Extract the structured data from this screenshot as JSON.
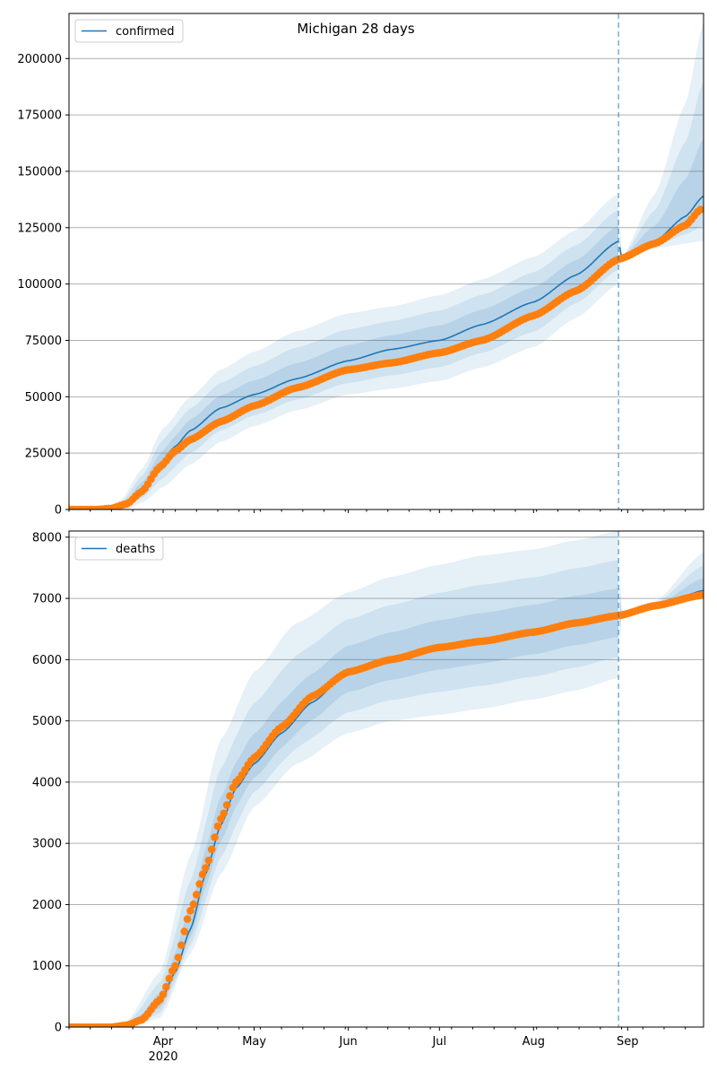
{
  "figure_title": "Michigan 28 days",
  "colors": {
    "model": "#1f77b4",
    "observed": "#ff7f0e",
    "band": "#1f77b4",
    "grid": "#b0b0b0",
    "vline": "#1f77b4"
  },
  "chart_data": [
    {
      "type": "line",
      "series": [
        {
          "name": "confirmed",
          "role": "model-median"
        },
        {
          "role": "observed-markers"
        }
      ],
      "x_ticks_major": [
        "Apr",
        "May",
        "Jun",
        "Jul",
        "Aug",
        "Sep"
      ],
      "x_tick_year": "2020",
      "ylim": [
        0,
        220000
      ],
      "yticks": [
        0,
        25000,
        50000,
        75000,
        100000,
        125000,
        150000,
        175000,
        200000
      ],
      "grid": "y",
      "legend": "top-left",
      "forecast_start": "2020-08-29",
      "model_knots": [
        [
          "2020-03-01",
          0
        ],
        [
          "2020-03-10",
          0
        ],
        [
          "2020-03-15",
          300
        ],
        [
          "2020-03-20",
          2500
        ],
        [
          "2020-03-25",
          9000
        ],
        [
          "2020-03-31",
          20000
        ],
        [
          "2020-04-05",
          28000
        ],
        [
          "2020-04-10",
          35000
        ],
        [
          "2020-04-20",
          45000
        ],
        [
          "2020-05-01",
          51000
        ],
        [
          "2020-05-15",
          58000
        ],
        [
          "2020-06-01",
          66000
        ],
        [
          "2020-06-15",
          71000
        ],
        [
          "2020-07-01",
          75000
        ],
        [
          "2020-07-15",
          82000
        ],
        [
          "2020-08-01",
          92000
        ],
        [
          "2020-08-15",
          104000
        ],
        [
          "2020-08-29",
          119000
        ],
        [
          "2020-08-30",
          112000
        ],
        [
          "2020-09-10",
          119000
        ],
        [
          "2020-09-20",
          130000
        ],
        [
          "2020-09-26",
          139000
        ]
      ],
      "observed_knots": [
        [
          "2020-03-01",
          0
        ],
        [
          "2020-03-10",
          0
        ],
        [
          "2020-03-15",
          500
        ],
        [
          "2020-03-20",
          2500
        ],
        [
          "2020-03-25",
          8000
        ],
        [
          "2020-03-31",
          19000
        ],
        [
          "2020-04-05",
          26000
        ],
        [
          "2020-04-10",
          31000
        ],
        [
          "2020-04-20",
          39000
        ],
        [
          "2020-05-01",
          46000
        ],
        [
          "2020-05-15",
          54000
        ],
        [
          "2020-06-01",
          62000
        ],
        [
          "2020-06-15",
          65000
        ],
        [
          "2020-07-01",
          69500
        ],
        [
          "2020-07-15",
          75000
        ],
        [
          "2020-08-01",
          86000
        ],
        [
          "2020-08-15",
          97000
        ],
        [
          "2020-08-29",
          111000
        ],
        [
          "2020-09-10",
          118000
        ],
        [
          "2020-09-20",
          126000
        ],
        [
          "2020-09-25",
          133000
        ]
      ],
      "band_knots_upper": [
        [
          "2020-03-01",
          0
        ],
        [
          "2020-03-12",
          0
        ],
        [
          "2020-03-18",
          4000
        ],
        [
          "2020-03-25",
          18000
        ],
        [
          "2020-04-01",
          36000
        ],
        [
          "2020-04-10",
          50000
        ],
        [
          "2020-04-20",
          62000
        ],
        [
          "2020-05-01",
          70000
        ],
        [
          "2020-05-15",
          79000
        ],
        [
          "2020-06-01",
          87000
        ],
        [
          "2020-06-15",
          90000
        ],
        [
          "2020-07-01",
          95000
        ],
        [
          "2020-07-15",
          102000
        ],
        [
          "2020-08-01",
          112000
        ],
        [
          "2020-08-15",
          124000
        ],
        [
          "2020-08-29",
          140000
        ],
        [
          "2020-08-30",
          112000
        ],
        [
          "2020-09-10",
          140000
        ],
        [
          "2020-09-20",
          180000
        ],
        [
          "2020-09-26",
          216000
        ]
      ],
      "band_knots_lower": [
        [
          "2020-03-01",
          0
        ],
        [
          "2020-03-20",
          0
        ],
        [
          "2020-03-25",
          3000
        ],
        [
          "2020-04-01",
          10000
        ],
        [
          "2020-04-10",
          20000
        ],
        [
          "2020-04-20",
          30000
        ],
        [
          "2020-05-01",
          37000
        ],
        [
          "2020-05-15",
          44000
        ],
        [
          "2020-06-01",
          51000
        ],
        [
          "2020-06-15",
          53500
        ],
        [
          "2020-07-01",
          57000
        ],
        [
          "2020-07-15",
          63000
        ],
        [
          "2020-08-01",
          72000
        ],
        [
          "2020-08-15",
          85000
        ],
        [
          "2020-08-29",
          100000
        ],
        [
          "2020-08-30",
          112000
        ],
        [
          "2020-09-10",
          116000
        ],
        [
          "2020-09-26",
          119000
        ]
      ]
    },
    {
      "type": "line",
      "series": [
        {
          "name": "deaths",
          "role": "model-median"
        },
        {
          "role": "observed-markers"
        }
      ],
      "x_ticks_major": [
        "Apr",
        "May",
        "Jun",
        "Jul",
        "Aug",
        "Sep"
      ],
      "x_tick_year": "2020",
      "ylim": [
        0,
        8100
      ],
      "yticks": [
        0,
        1000,
        2000,
        3000,
        4000,
        5000,
        6000,
        7000,
        8000
      ],
      "grid": "y",
      "legend": "top-left",
      "forecast_start": "2020-08-29",
      "model_knots": [
        [
          "2020-03-01",
          0
        ],
        [
          "2020-03-15",
          0
        ],
        [
          "2020-03-20",
          20
        ],
        [
          "2020-03-25",
          100
        ],
        [
          "2020-03-31",
          400
        ],
        [
          "2020-04-05",
          900
        ],
        [
          "2020-04-10",
          1600
        ],
        [
          "2020-04-15",
          2500
        ],
        [
          "2020-04-20",
          3300
        ],
        [
          "2020-04-25",
          3900
        ],
        [
          "2020-05-01",
          4300
        ],
        [
          "2020-05-10",
          4800
        ],
        [
          "2020-05-20",
          5300
        ],
        [
          "2020-06-01",
          5800
        ],
        [
          "2020-06-15",
          6000
        ],
        [
          "2020-07-01",
          6200
        ],
        [
          "2020-07-15",
          6300
        ],
        [
          "2020-08-01",
          6450
        ],
        [
          "2020-08-15",
          6600
        ],
        [
          "2020-08-29",
          6700
        ],
        [
          "2020-09-10",
          6850
        ],
        [
          "2020-09-26",
          7130
        ]
      ],
      "observed_knots": [
        [
          "2020-03-01",
          0
        ],
        [
          "2020-03-15",
          0
        ],
        [
          "2020-03-20",
          30
        ],
        [
          "2020-03-25",
          120
        ],
        [
          "2020-03-31",
          450
        ],
        [
          "2020-04-05",
          1000
        ],
        [
          "2020-04-10",
          1900
        ],
        [
          "2020-04-15",
          2600
        ],
        [
          "2020-04-20",
          3400
        ],
        [
          "2020-04-25",
          4000
        ],
        [
          "2020-05-01",
          4400
        ],
        [
          "2020-05-10",
          4900
        ],
        [
          "2020-05-20",
          5400
        ],
        [
          "2020-06-01",
          5800
        ],
        [
          "2020-06-15",
          6000
        ],
        [
          "2020-07-01",
          6200
        ],
        [
          "2020-07-15",
          6300
        ],
        [
          "2020-08-01",
          6450
        ],
        [
          "2020-08-15",
          6600
        ],
        [
          "2020-08-29",
          6720
        ],
        [
          "2020-09-10",
          6880
        ],
        [
          "2020-09-25",
          7050
        ]
      ],
      "band_knots_upper": [
        [
          "2020-03-01",
          0
        ],
        [
          "2020-03-12",
          0
        ],
        [
          "2020-03-20",
          100
        ],
        [
          "2020-03-31",
          900
        ],
        [
          "2020-04-10",
          2800
        ],
        [
          "2020-04-20",
          4700
        ],
        [
          "2020-05-01",
          5800
        ],
        [
          "2020-05-15",
          6600
        ],
        [
          "2020-06-01",
          7100
        ],
        [
          "2020-06-15",
          7350
        ],
        [
          "2020-07-01",
          7550
        ],
        [
          "2020-07-15",
          7700
        ],
        [
          "2020-08-01",
          7800
        ],
        [
          "2020-08-15",
          7950
        ],
        [
          "2020-08-29",
          8100
        ],
        [
          "2020-08-30",
          6800
        ],
        [
          "2020-09-10",
          6950
        ],
        [
          "2020-09-26",
          7750
        ]
      ],
      "band_knots_lower": [
        [
          "2020-03-01",
          0
        ],
        [
          "2020-03-22",
          0
        ],
        [
          "2020-03-31",
          150
        ],
        [
          "2020-04-10",
          1200
        ],
        [
          "2020-04-20",
          2500
        ],
        [
          "2020-05-01",
          3600
        ],
        [
          "2020-05-15",
          4300
        ],
        [
          "2020-06-01",
          4800
        ],
        [
          "2020-06-15",
          5000
        ],
        [
          "2020-07-01",
          5100
        ],
        [
          "2020-07-15",
          5200
        ],
        [
          "2020-08-01",
          5350
        ],
        [
          "2020-08-15",
          5500
        ],
        [
          "2020-08-29",
          5700
        ],
        [
          "2020-08-30",
          6800
        ],
        [
          "2020-09-10",
          6880
        ],
        [
          "2020-09-26",
          6980
        ]
      ]
    }
  ]
}
